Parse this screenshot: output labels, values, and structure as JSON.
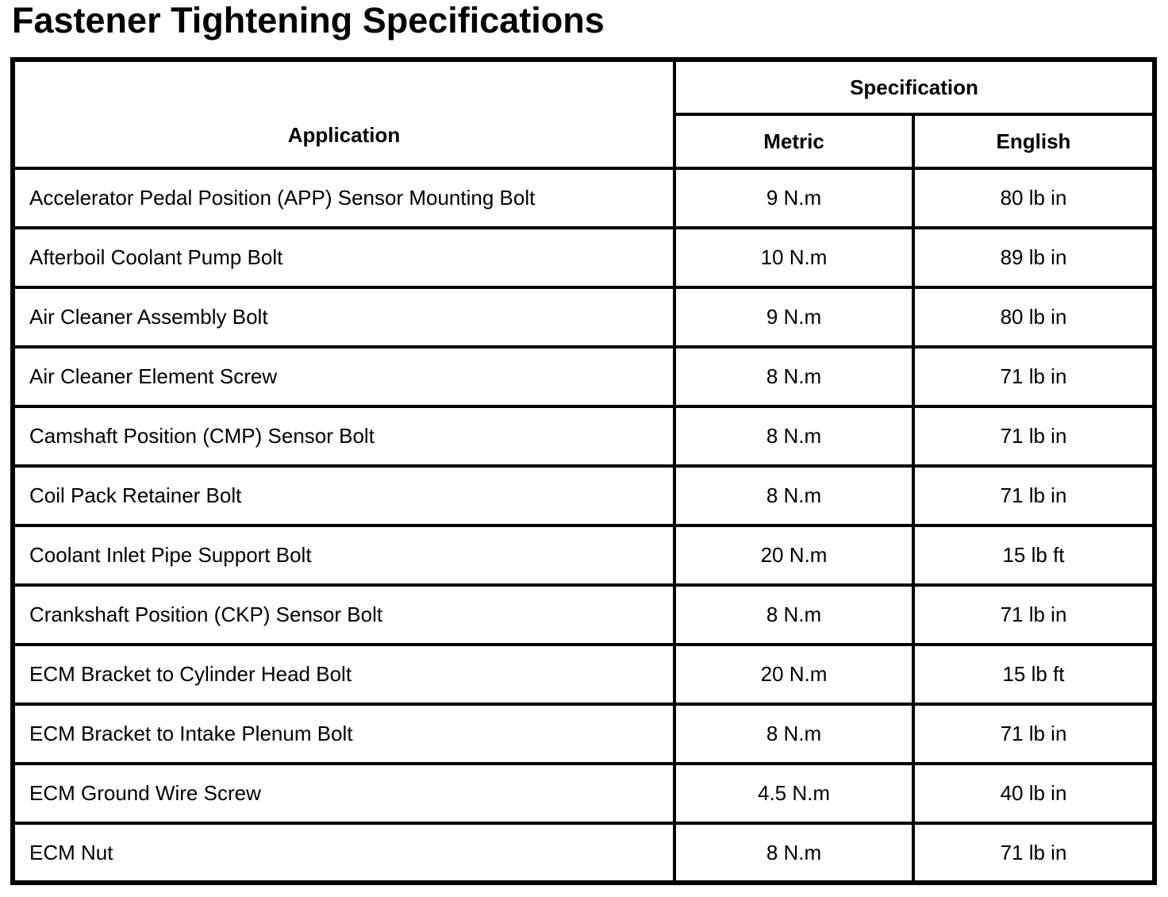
{
  "title": "Fastener Tightening Specifications",
  "colors": {
    "text": "#000000",
    "background": "#ffffff",
    "table_border": "#000000"
  },
  "table": {
    "header": {
      "application": "Application",
      "specification": "Specification",
      "metric": "Metric",
      "english": "English"
    },
    "rows": [
      {
        "application": "Accelerator Pedal Position (APP) Sensor Mounting Bolt",
        "metric": "9 N.m",
        "english": "80 lb in"
      },
      {
        "application": "Afterboil Coolant Pump Bolt",
        "metric": "10 N.m",
        "english": "89 lb in"
      },
      {
        "application": "Air Cleaner Assembly Bolt",
        "metric": "9 N.m",
        "english": "80 lb in"
      },
      {
        "application": "Air Cleaner Element Screw",
        "metric": "8 N.m",
        "english": "71 lb in"
      },
      {
        "application": "Camshaft Position (CMP) Sensor Bolt",
        "metric": "8 N.m",
        "english": "71 lb in"
      },
      {
        "application": "Coil Pack Retainer Bolt",
        "metric": "8 N.m",
        "english": "71 lb in"
      },
      {
        "application": "Coolant Inlet Pipe Support Bolt",
        "metric": "20 N.m",
        "english": "15 lb ft"
      },
      {
        "application": "Crankshaft Position (CKP) Sensor Bolt",
        "metric": "8 N.m",
        "english": "71 lb in"
      },
      {
        "application": "ECM Bracket to Cylinder Head Bolt",
        "metric": "20 N.m",
        "english": "15 lb ft"
      },
      {
        "application": "ECM Bracket to Intake Plenum Bolt",
        "metric": "8 N.m",
        "english": "71 lb in"
      },
      {
        "application": "ECM Ground Wire Screw",
        "metric": "4.5 N.m",
        "english": "40 lb in"
      },
      {
        "application": "ECM Nut",
        "metric": "8 N.m",
        "english": "71 lb in"
      }
    ]
  }
}
